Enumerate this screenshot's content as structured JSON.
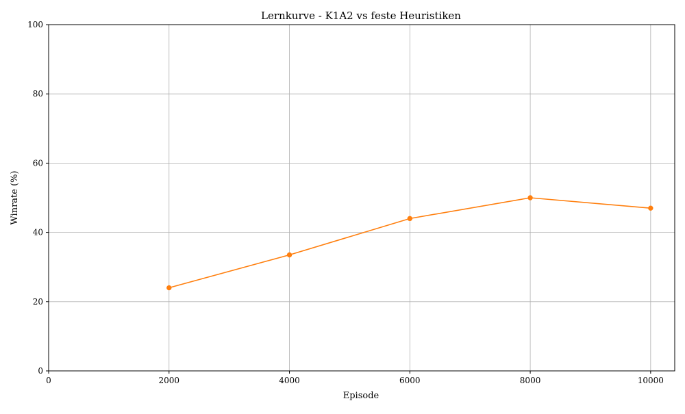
{
  "chart_data": {
    "type": "line",
    "title": "Lernkurve - K1A2 vs feste Heuristiken",
    "xlabel": "Episode",
    "ylabel": "Winrate (%)",
    "xlim": [
      0,
      10400
    ],
    "ylim": [
      0,
      100
    ],
    "xticks": [
      0,
      2000,
      4000,
      6000,
      8000,
      10000
    ],
    "xtick_labels": [
      "0",
      "2000",
      "4000",
      "6000",
      "8000",
      "10000"
    ],
    "yticks": [
      0,
      20,
      40,
      60,
      80,
      100
    ],
    "ytick_labels": [
      "0",
      "20",
      "40",
      "60",
      "80",
      "100"
    ],
    "grid": true,
    "legend": "none",
    "series": [
      {
        "color": "#ff7f0e",
        "marker": "circle",
        "x": [
          2000,
          4000,
          6000,
          8000,
          10000
        ],
        "y": [
          24,
          33.5,
          44,
          50,
          47
        ]
      }
    ]
  }
}
